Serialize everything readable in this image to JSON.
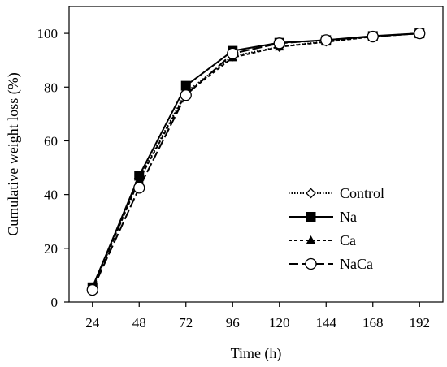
{
  "chart_data": {
    "type": "line",
    "title": "",
    "xlabel": "Time (h)",
    "ylabel": "Cumulative weight loss (%)",
    "x": [
      24,
      48,
      72,
      96,
      120,
      144,
      168,
      192
    ],
    "xlim": [
      12,
      204
    ],
    "ylim": [
      0,
      110
    ],
    "xticks": [
      "24",
      "48",
      "72",
      "96",
      "120",
      "144",
      "168",
      "192"
    ],
    "yticks": [
      "0",
      "20",
      "40",
      "60",
      "80",
      "100"
    ],
    "grid": false,
    "legend_position": "lower-right",
    "series": [
      {
        "name": "Control",
        "marker": "diamond-open",
        "line_style": "dotted",
        "color": "#000000",
        "values": [
          5,
          46,
          78,
          91.5,
          95,
          97,
          98.8,
          100
        ]
      },
      {
        "name": "Na",
        "marker": "square-filled",
        "line_style": "solid",
        "color": "#000000",
        "values": [
          5.5,
          47,
          80.5,
          93.5,
          96.5,
          97.5,
          99,
          100
        ]
      },
      {
        "name": "Ca",
        "marker": "triangle-filled",
        "line_style": "dashed",
        "color": "#000000",
        "values": [
          5,
          45.5,
          77.5,
          91,
          95,
          96.8,
          98.8,
          100
        ]
      },
      {
        "name": "NaCa",
        "marker": "circle-open",
        "line_style": "long-dash",
        "color": "#000000",
        "values": [
          4.5,
          42.5,
          77,
          92.5,
          96.3,
          97.5,
          98.8,
          100
        ]
      }
    ]
  }
}
